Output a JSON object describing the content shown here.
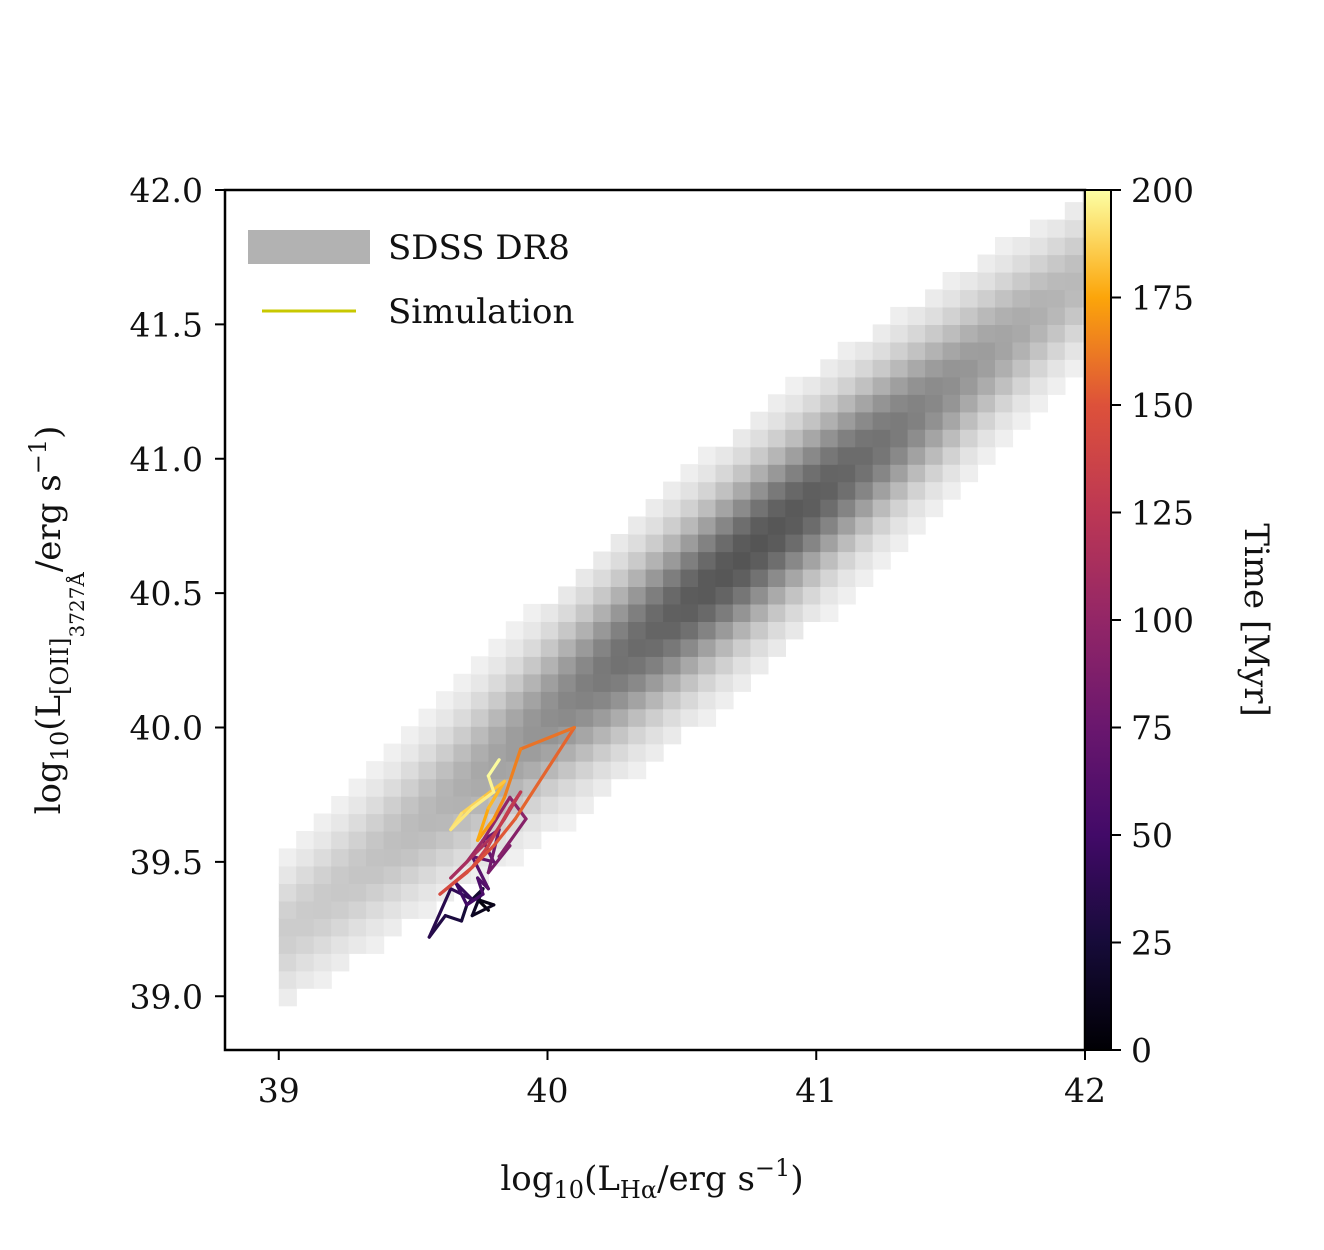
{
  "chart_data": {
    "type": "heatmap",
    "xlabel": "log10(LHα/erg s−1)",
    "ylabel": "log10(L[OII]3727Å/erg s−1)",
    "xlim": [
      38.8,
      42.0
    ],
    "ylim": [
      38.8,
      42.0
    ],
    "xticks": [
      "39",
      "40",
      "41",
      "42"
    ],
    "yticks": [
      "39.0",
      "39.5",
      "40.0",
      "40.5",
      "41.0",
      "41.5",
      "42.0"
    ],
    "legend": {
      "placement": "upper left",
      "entries": [
        {
          "label": "SDSS DR8",
          "color": "#b2b2b2",
          "kind": "patch"
        },
        {
          "label": "Simulation",
          "color": "#c8c800",
          "kind": "line"
        }
      ]
    },
    "colorbar": {
      "label": "Time [Myr]",
      "colormap": "inferno",
      "range": [
        0,
        200
      ],
      "ticks": [
        "0",
        "25",
        "50",
        "75",
        "100",
        "125",
        "150",
        "175",
        "200"
      ]
    },
    "sdss_density": {
      "description": "2D histogram of SDSS DR8 galaxies, gray shading by count",
      "ridge": {
        "x0": 39.0,
        "y0": 39.22,
        "slope": 0.82
      },
      "x_range": [
        39.0,
        42.0
      ],
      "bin_size": 0.065
    },
    "series": [
      {
        "name": "Simulation",
        "x": [
          39.78,
          39.74,
          39.8,
          39.72,
          39.76,
          39.7,
          39.68,
          39.62,
          39.56,
          39.64,
          39.72,
          39.66,
          39.7,
          39.76,
          39.74,
          39.78,
          39.72,
          39.8,
          39.76,
          39.82,
          39.78,
          39.86,
          39.82,
          39.92,
          39.86,
          39.76,
          39.7,
          39.64,
          39.74,
          39.8,
          39.84,
          39.9,
          39.86,
          39.78,
          39.72,
          39.6,
          39.7,
          39.8,
          39.88,
          40.1,
          39.9,
          39.84,
          39.8,
          39.74,
          39.78,
          39.84,
          39.76,
          39.68,
          39.64,
          39.72,
          39.8,
          39.78,
          39.82
        ],
        "y": [
          39.32,
          39.36,
          39.34,
          39.3,
          39.4,
          39.34,
          39.28,
          39.3,
          39.22,
          39.4,
          39.36,
          39.42,
          39.34,
          39.38,
          39.44,
          39.4,
          39.52,
          39.5,
          39.58,
          39.62,
          39.46,
          39.56,
          39.52,
          39.66,
          39.74,
          39.58,
          39.5,
          39.44,
          39.54,
          39.6,
          39.66,
          39.76,
          39.7,
          39.56,
          39.48,
          39.38,
          39.46,
          39.56,
          39.66,
          40.0,
          39.92,
          39.74,
          39.66,
          39.58,
          39.7,
          39.8,
          39.74,
          39.68,
          39.62,
          39.7,
          39.76,
          39.82,
          39.88
        ],
        "t": [
          2,
          6,
          10,
          14,
          18,
          22,
          26,
          30,
          34,
          38,
          42,
          46,
          50,
          54,
          58,
          62,
          66,
          70,
          74,
          78,
          82,
          86,
          90,
          94,
          98,
          102,
          106,
          110,
          114,
          118,
          122,
          126,
          130,
          134,
          138,
          142,
          146,
          150,
          154,
          158,
          162,
          166,
          170,
          174,
          178,
          182,
          186,
          190,
          192,
          194,
          196,
          198,
          200
        ]
      }
    ]
  }
}
